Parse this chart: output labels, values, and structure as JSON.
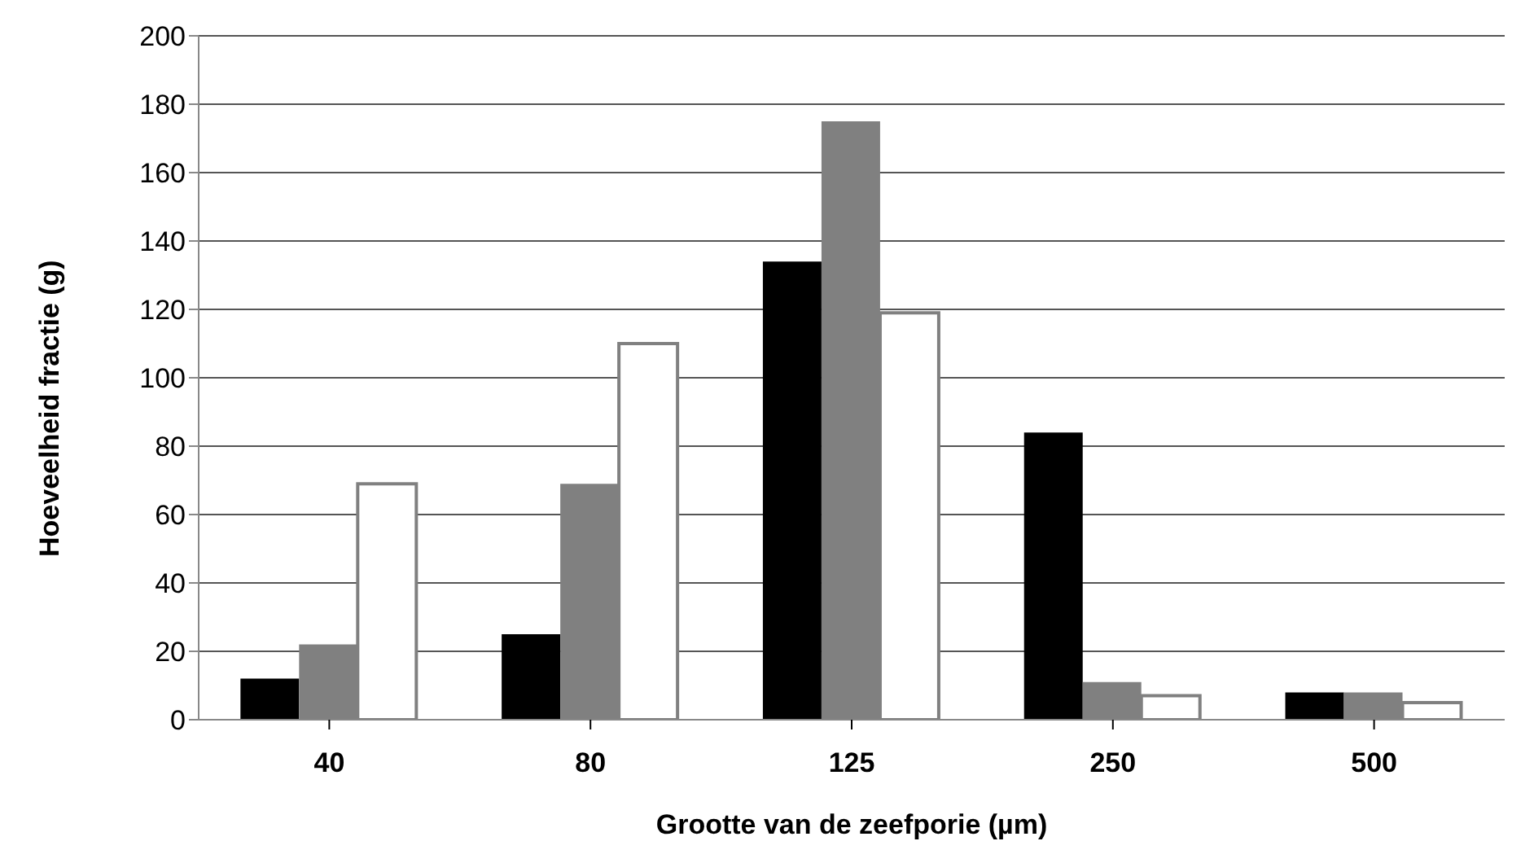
{
  "chart_data": {
    "type": "bar",
    "xlabel": "Grootte van de zeefporie (µm)",
    "ylabel": "Hoeveelheid fractie (g)",
    "categories": [
      "40",
      "80",
      "125",
      "250",
      "500"
    ],
    "series": [
      {
        "color": "#000000",
        "values": [
          12,
          25,
          134,
          84,
          8
        ]
      },
      {
        "color": "#808080",
        "values": [
          22,
          69,
          175,
          11,
          8
        ]
      },
      {
        "color": "#ffffff",
        "values": [
          69,
          110,
          119,
          7,
          5
        ]
      }
    ],
    "ylim": [
      0,
      200
    ],
    "yticks": [
      0,
      20,
      40,
      60,
      80,
      100,
      120,
      140,
      160,
      180,
      200
    ],
    "grid": "y",
    "legend": false
  }
}
